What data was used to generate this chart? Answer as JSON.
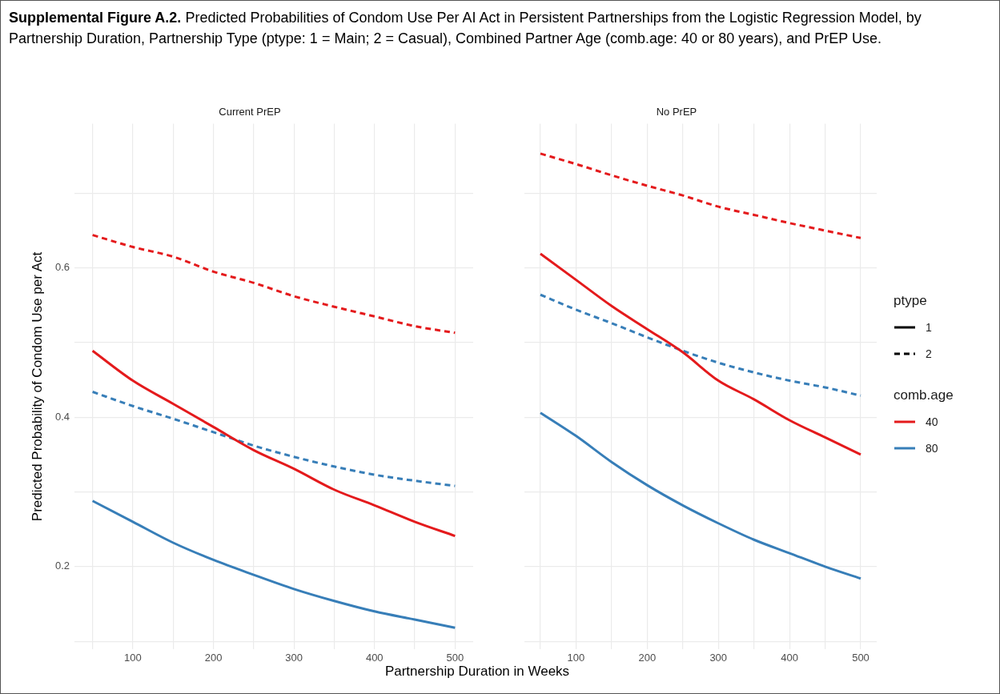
{
  "chart_data": [
    {
      "type": "line",
      "title": "Current PrEP",
      "xlabel": "Partnership Duration in Weeks",
      "ylabel": "Predicted Probability of Condom Use per Act",
      "annotations": [
        "Supplemental Figure A.2.",
        "Predicted Probabilities of Condom Use Per AI Act in Persistent Partnerships from the Logistic Regression Model, by Partnership Duration, Partnership Type (ptype: 1 = Main; 2 = Casual), Combined Partner Age (comb.age: 40 or 80 years), and PrEP Use."
      ],
      "x": [
        50,
        100,
        150,
        200,
        250,
        300,
        350,
        400,
        450,
        500
      ],
      "series": [
        {
          "color": "#e41a1c",
          "line_style": "solid",
          "values": [
            0.489,
            0.449,
            0.418,
            0.387,
            0.356,
            0.331,
            0.303,
            0.282,
            0.26,
            0.241
          ]
        },
        {
          "color": "#e41a1c",
          "line_style": "dashed",
          "values": [
            0.644,
            0.628,
            0.615,
            0.595,
            0.58,
            0.562,
            0.548,
            0.535,
            0.522,
            0.513
          ]
        },
        {
          "color": "#377eb8",
          "line_style": "solid",
          "values": [
            0.288,
            0.26,
            0.232,
            0.209,
            0.189,
            0.17,
            0.154,
            0.14,
            0.129,
            0.118
          ]
        },
        {
          "color": "#377eb8",
          "line_style": "dashed",
          "values": [
            0.434,
            0.415,
            0.398,
            0.38,
            0.362,
            0.347,
            0.334,
            0.323,
            0.315,
            0.308
          ]
        }
      ],
      "xlim": [
        27.5,
        522.5
      ],
      "xticks": [
        {
          "value": 50,
          "label": null
        },
        100,
        {
          "value": 150,
          "label": null
        },
        200,
        {
          "value": 250,
          "label": null
        },
        300,
        {
          "value": 350,
          "label": null
        },
        400,
        {
          "value": 450,
          "label": null
        },
        500
      ],
      "ylim": [
        0.089,
        0.793
      ],
      "yticks": [
        {
          "value": 0.1,
          "label": null
        },
        0.2,
        {
          "value": 0.3,
          "label": null
        },
        0.4,
        {
          "value": 0.5,
          "label": null
        },
        0.6,
        {
          "value": 0.7,
          "label": null
        }
      ],
      "grid": true,
      "marker": "none"
    },
    {
      "type": "line",
      "title": "No PrEP",
      "annotations": [
        "ptype",
        "1",
        "2",
        "comb.age",
        "40",
        "80"
      ],
      "x": [
        50,
        100,
        150,
        200,
        250,
        300,
        350,
        400,
        450,
        500
      ],
      "series": [
        {
          "color": "#e41a1c",
          "line_style": "solid",
          "values": [
            0.619,
            0.584,
            0.549,
            0.518,
            0.487,
            0.449,
            0.424,
            0.396,
            0.373,
            0.35
          ]
        },
        {
          "color": "#e41a1c",
          "line_style": "dashed",
          "values": [
            0.753,
            0.739,
            0.724,
            0.71,
            0.697,
            0.682,
            0.671,
            0.66,
            0.65,
            0.64
          ]
        },
        {
          "color": "#377eb8",
          "line_style": "solid",
          "values": [
            0.406,
            0.375,
            0.34,
            0.309,
            0.282,
            0.258,
            0.236,
            0.218,
            0.2,
            0.184
          ]
        },
        {
          "color": "#377eb8",
          "line_style": "dashed",
          "values": [
            0.564,
            0.544,
            0.526,
            0.507,
            0.489,
            0.473,
            0.46,
            0.449,
            0.44,
            0.429
          ]
        }
      ],
      "xlim": [
        27.5,
        522.5
      ],
      "xticks": [
        {
          "value": 50,
          "label": null
        },
        100,
        {
          "value": 150,
          "label": null
        },
        200,
        {
          "value": 250,
          "label": null
        },
        300,
        {
          "value": 350,
          "label": null
        },
        400,
        {
          "value": 450,
          "label": null
        },
        500
      ],
      "ylim": [
        0.089,
        0.793
      ],
      "yticks": [
        {
          "value": 0.1,
          "label": null
        },
        0.2,
        {
          "value": 0.3,
          "label": null
        },
        0.4,
        {
          "value": 0.5,
          "label": null
        },
        0.6,
        {
          "value": 0.7,
          "label": null
        }
      ],
      "tick_labels": "x",
      "grid": true,
      "marker": "none"
    }
  ]
}
